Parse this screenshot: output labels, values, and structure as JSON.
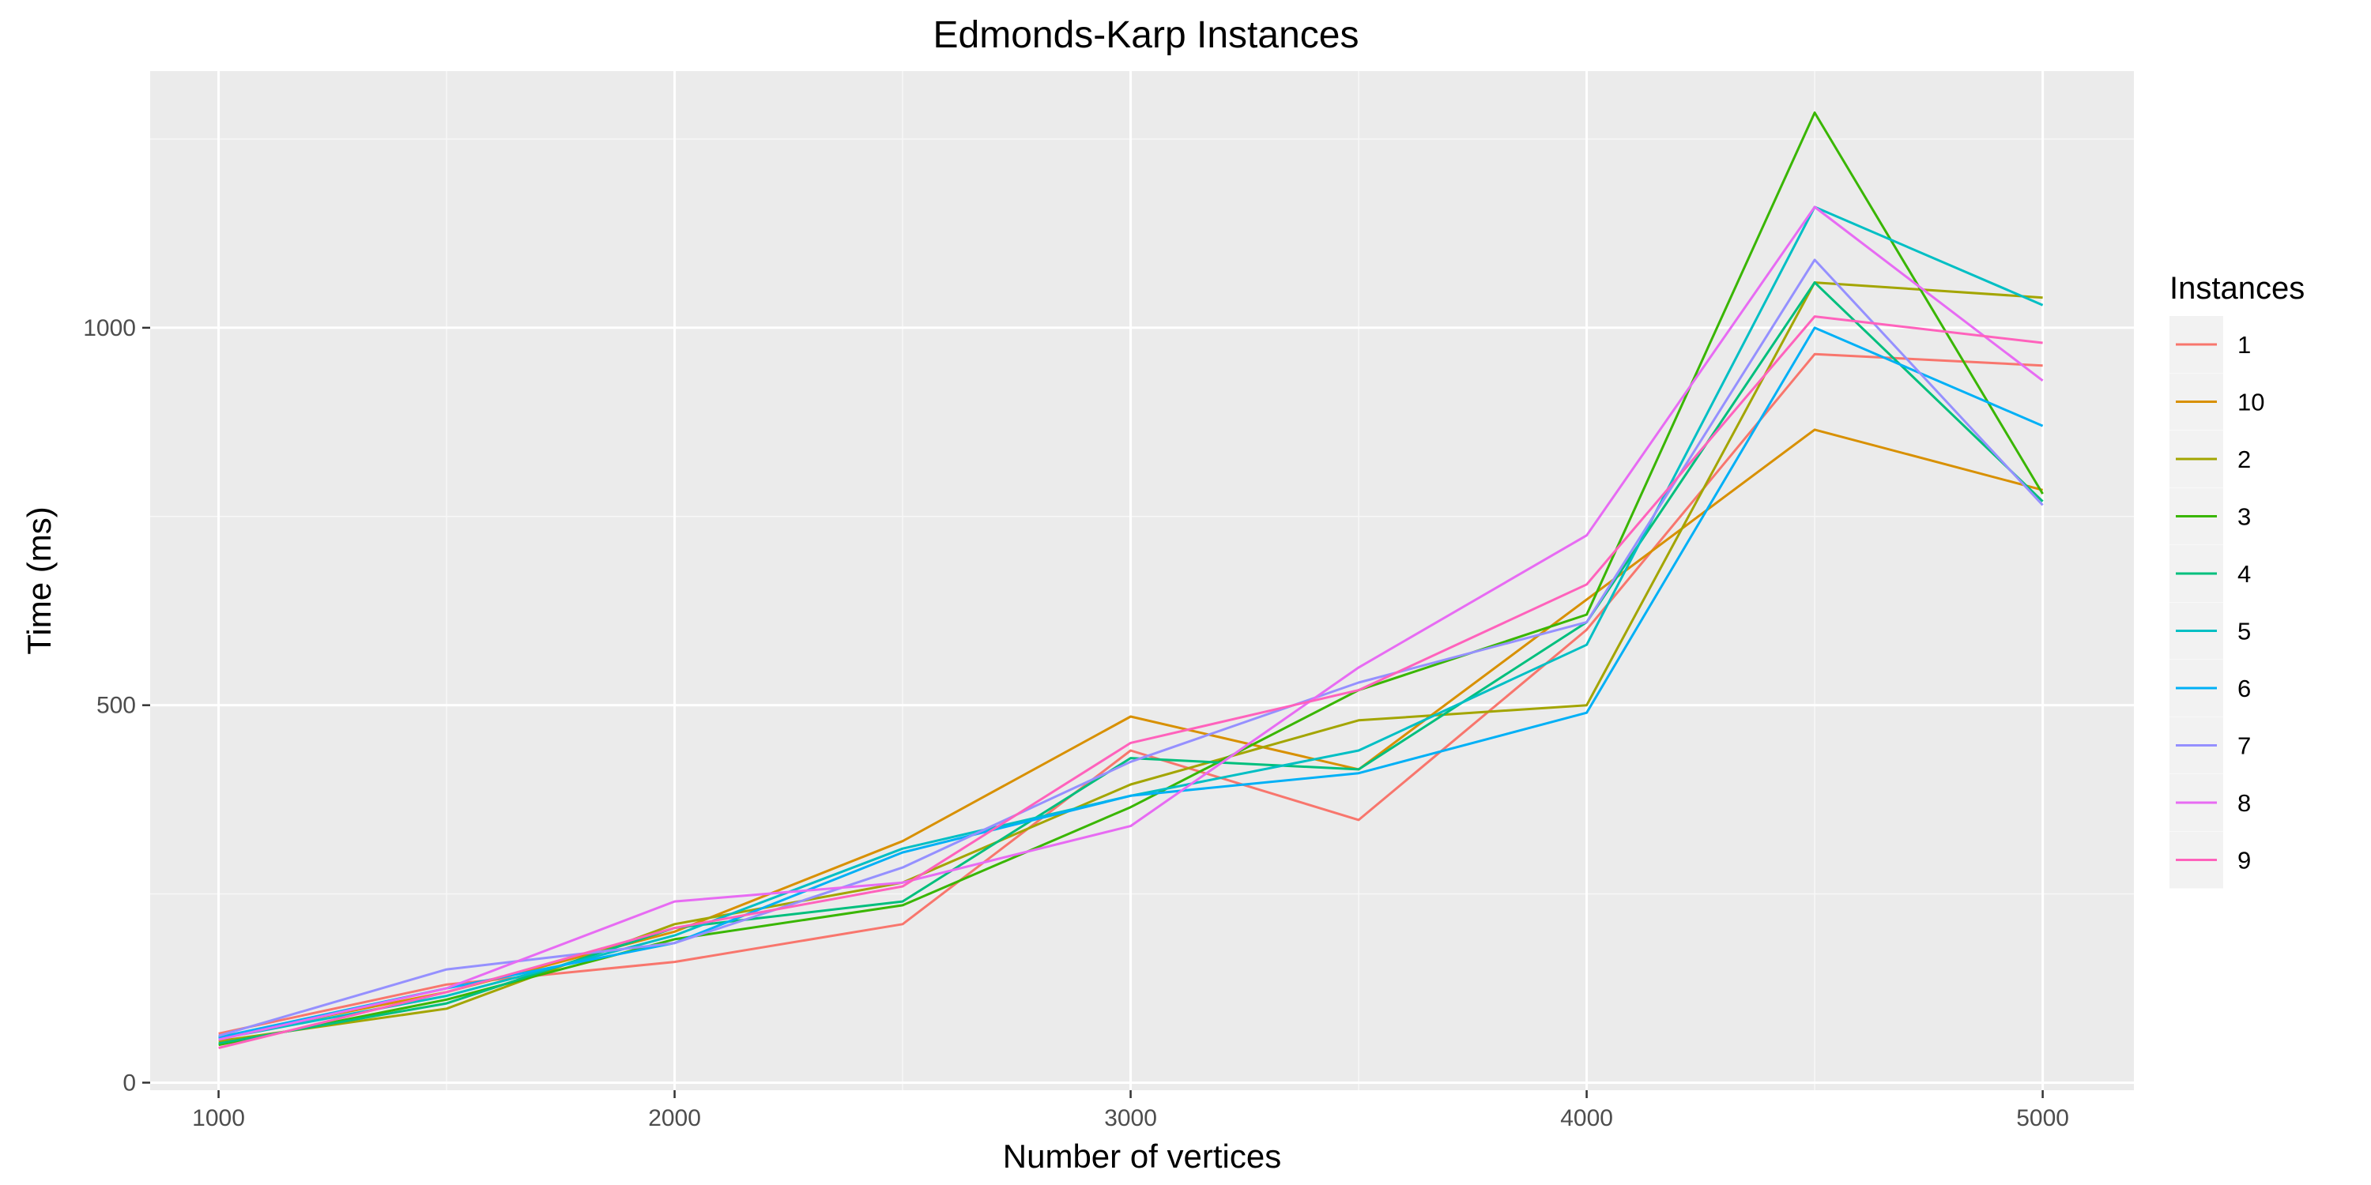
{
  "chart_data": {
    "type": "line",
    "title": "Edmonds-Karp Instances",
    "xlabel": "Number of vertices",
    "ylabel": "Time (ms)",
    "xlim": [
      850,
      5200
    ],
    "ylim": [
      -10,
      1340
    ],
    "x_ticks": [
      1000,
      2000,
      3000,
      4000,
      5000
    ],
    "y_ticks": [
      0,
      500,
      1000
    ],
    "x_tick_labels": [
      "1000",
      "2000",
      "3000",
      "4000",
      "5000"
    ],
    "y_tick_labels": [
      "0",
      "500",
      "1000"
    ],
    "grid": true,
    "legend": {
      "title": "Instances",
      "position": "right"
    },
    "x": [
      1000,
      1500,
      2000,
      2500,
      3000,
      3500,
      4000,
      4500,
      5000
    ],
    "series": [
      {
        "name": "1",
        "color": "#F8766D",
        "values": [
          65,
          130,
          160,
          210,
          440,
          348,
          600,
          965,
          950
        ]
      },
      {
        "name": "10",
        "color": "#D89000",
        "values": [
          60,
          120,
          200,
          320,
          485,
          415,
          640,
          865,
          785
        ]
      },
      {
        "name": "2",
        "color": "#A3A500",
        "values": [
          55,
          98,
          210,
          265,
          395,
          480,
          500,
          1060,
          1040
        ]
      },
      {
        "name": "3",
        "color": "#39B600",
        "values": [
          50,
          110,
          190,
          235,
          365,
          520,
          620,
          1285,
          780
        ]
      },
      {
        "name": "4",
        "color": "#00BF7D",
        "values": [
          52,
          105,
          205,
          240,
          430,
          415,
          610,
          1060,
          770
        ]
      },
      {
        "name": "5",
        "color": "#00BFC4",
        "values": [
          58,
          115,
          195,
          310,
          380,
          440,
          580,
          1160,
          1030
        ]
      },
      {
        "name": "6",
        "color": "#00B0F6",
        "values": [
          60,
          125,
          185,
          305,
          380,
          410,
          490,
          1000,
          870
        ]
      },
      {
        "name": "7",
        "color": "#9590FF",
        "values": [
          62,
          150,
          185,
          285,
          425,
          530,
          610,
          1090,
          765
        ]
      },
      {
        "name": "8",
        "color": "#E76BF3",
        "values": [
          57,
          125,
          240,
          265,
          340,
          550,
          725,
          1160,
          930
        ]
      },
      {
        "name": "9",
        "color": "#FF62BC",
        "values": [
          46,
          120,
          205,
          260,
          450,
          520,
          660,
          1015,
          980
        ]
      }
    ]
  }
}
